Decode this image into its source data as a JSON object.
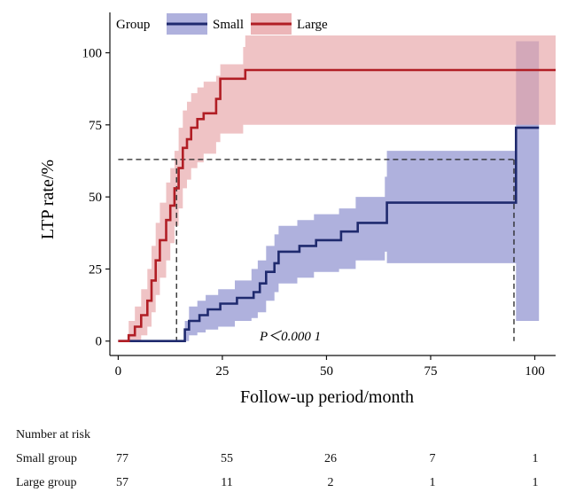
{
  "chart_data": {
    "type": "line",
    "subtype": "kaplan-meier-cumulative-incidence",
    "xlabel": "Follow-up period/month",
    "ylabel": "LTP rate/%",
    "xlim": [
      -2,
      105
    ],
    "ylim": [
      -5,
      114
    ],
    "xticks": [
      0,
      25,
      50,
      75,
      100
    ],
    "yticks": [
      0,
      25,
      50,
      75,
      100
    ],
    "legend": {
      "title": "Group",
      "position": "top-left-outside"
    },
    "annotation": "P＜0.000 1",
    "reference_line_y": 63,
    "reference_lines_x": [
      14,
      95
    ],
    "series": [
      {
        "name": "Small",
        "color": "#1f2a6e",
        "band_color": "#8d90cf",
        "steps": [
          [
            0,
            0
          ],
          [
            15.5,
            0
          ],
          [
            16,
            4
          ],
          [
            17,
            7
          ],
          [
            19,
            7
          ],
          [
            19.5,
            9
          ],
          [
            21,
            9
          ],
          [
            21.5,
            11
          ],
          [
            24,
            11
          ],
          [
            24.5,
            13
          ],
          [
            28,
            13
          ],
          [
            28.5,
            15
          ],
          [
            32,
            15
          ],
          [
            32.5,
            17
          ],
          [
            33.5,
            17
          ],
          [
            34,
            20
          ],
          [
            35,
            20
          ],
          [
            35.5,
            24
          ],
          [
            37,
            24
          ],
          [
            37.5,
            27
          ],
          [
            38,
            27
          ],
          [
            38.5,
            31
          ],
          [
            43,
            31
          ],
          [
            43.5,
            33
          ],
          [
            47,
            33
          ],
          [
            47.5,
            35
          ],
          [
            53,
            35
          ],
          [
            53.5,
            38
          ],
          [
            57,
            38
          ],
          [
            57.5,
            41
          ],
          [
            64,
            41
          ],
          [
            64.5,
            48
          ],
          [
            95,
            48
          ],
          [
            95.5,
            74
          ],
          [
            101,
            74
          ]
        ],
        "ci_upper": [
          [
            16,
            7
          ],
          [
            17,
            12
          ],
          [
            19,
            14
          ],
          [
            21,
            16
          ],
          [
            24,
            18
          ],
          [
            28,
            21
          ],
          [
            32,
            25
          ],
          [
            33.5,
            28
          ],
          [
            35.5,
            33
          ],
          [
            37.5,
            37
          ],
          [
            38.5,
            40
          ],
          [
            43,
            42
          ],
          [
            47,
            44
          ],
          [
            53,
            46
          ],
          [
            57,
            50
          ],
          [
            64,
            57
          ],
          [
            64.5,
            66
          ],
          [
            95,
            66
          ],
          [
            95.5,
            104
          ],
          [
            101,
            104
          ]
        ],
        "ci_lower": [
          [
            16,
            0
          ],
          [
            17,
            2
          ],
          [
            19,
            3
          ],
          [
            21,
            4
          ],
          [
            24,
            5
          ],
          [
            28,
            7
          ],
          [
            32,
            8
          ],
          [
            33.5,
            10
          ],
          [
            35.5,
            14
          ],
          [
            37.5,
            17
          ],
          [
            38.5,
            20
          ],
          [
            43,
            22
          ],
          [
            47,
            24
          ],
          [
            53,
            25
          ],
          [
            57,
            28
          ],
          [
            64,
            31
          ],
          [
            64.5,
            27
          ],
          [
            95,
            27
          ],
          [
            95.5,
            7
          ],
          [
            101,
            7
          ]
        ],
        "at_risk": [
          77,
          55,
          26,
          7,
          1
        ]
      },
      {
        "name": "Large",
        "color": "#b11e25",
        "band_color": "#e7a3a6",
        "steps": [
          [
            0,
            0
          ],
          [
            2,
            0
          ],
          [
            2.5,
            2
          ],
          [
            3.5,
            2
          ],
          [
            4,
            5
          ],
          [
            5,
            5
          ],
          [
            5.5,
            9
          ],
          [
            6.5,
            9
          ],
          [
            7,
            14
          ],
          [
            7.5,
            14
          ],
          [
            8,
            21
          ],
          [
            8.5,
            21
          ],
          [
            9,
            28
          ],
          [
            9.5,
            28
          ],
          [
            10,
            35
          ],
          [
            11,
            35
          ],
          [
            11.5,
            42
          ],
          [
            12,
            42
          ],
          [
            12.5,
            47
          ],
          [
            13,
            47
          ],
          [
            13.5,
            53
          ],
          [
            14,
            53
          ],
          [
            14.5,
            60
          ],
          [
            15,
            60
          ],
          [
            15.5,
            67
          ],
          [
            16,
            67
          ],
          [
            16.5,
            70
          ],
          [
            17,
            70
          ],
          [
            17.5,
            74
          ],
          [
            18.5,
            74
          ],
          [
            19,
            77
          ],
          [
            20,
            77
          ],
          [
            20.5,
            79
          ],
          [
            23,
            79
          ],
          [
            23.5,
            84
          ],
          [
            24,
            84
          ],
          [
            24.5,
            91
          ],
          [
            30,
            91
          ],
          [
            30.5,
            94
          ],
          [
            105,
            94
          ]
        ],
        "ci_upper": [
          [
            2.5,
            7
          ],
          [
            4,
            12
          ],
          [
            5.5,
            18
          ],
          [
            7,
            25
          ],
          [
            8,
            33
          ],
          [
            9,
            41
          ],
          [
            10,
            48
          ],
          [
            11.5,
            55
          ],
          [
            12.5,
            60
          ],
          [
            13.5,
            66
          ],
          [
            14.5,
            74
          ],
          [
            15.5,
            80
          ],
          [
            16.5,
            83
          ],
          [
            17.5,
            86
          ],
          [
            19,
            88
          ],
          [
            20.5,
            90
          ],
          [
            23.5,
            92
          ],
          [
            24.5,
            96
          ],
          [
            30,
            102
          ],
          [
            30.5,
            106
          ],
          [
            105,
            106
          ]
        ],
        "ci_lower": [
          [
            2.5,
            0
          ],
          [
            4,
            0
          ],
          [
            5.5,
            2
          ],
          [
            7,
            5
          ],
          [
            8,
            10
          ],
          [
            9,
            16
          ],
          [
            10,
            22
          ],
          [
            11.5,
            28
          ],
          [
            12.5,
            34
          ],
          [
            13.5,
            40
          ],
          [
            14.5,
            46
          ],
          [
            15.5,
            53
          ],
          [
            16.5,
            56
          ],
          [
            17.5,
            60
          ],
          [
            19,
            62
          ],
          [
            20.5,
            65
          ],
          [
            23.5,
            69
          ],
          [
            24.5,
            72
          ],
          [
            30,
            75
          ],
          [
            30.5,
            75
          ],
          [
            105,
            75
          ]
        ],
        "at_risk": [
          57,
          11,
          2,
          1,
          1
        ]
      }
    ]
  },
  "risk_table": {
    "title": "Number at risk",
    "rows": [
      {
        "label": "Small group",
        "values": [
          "77",
          "55",
          "26",
          "7",
          "1"
        ]
      },
      {
        "label": "Large group",
        "values": [
          "57",
          "11",
          "2",
          "1",
          "1"
        ]
      }
    ]
  }
}
